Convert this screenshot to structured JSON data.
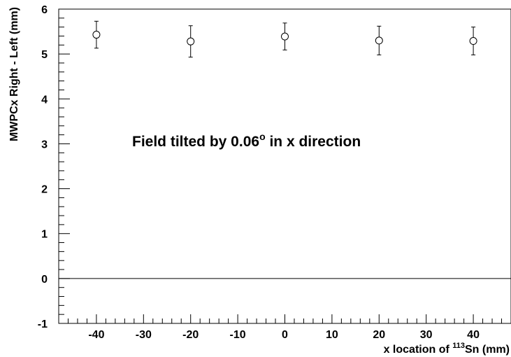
{
  "chart_data": {
    "type": "scatter",
    "xlabel_prefix": "x location of ",
    "xlabel_sup": "113",
    "xlabel_suffix": "Sn (mm)",
    "ylabel": "MWPCx Right - Left (mm)",
    "annotation_prefix": "Field tilted by 0.06",
    "annotation_sup": "o",
    "annotation_suffix": " in x direction",
    "xlim": [
      -48,
      48
    ],
    "ylim": [
      -1,
      6
    ],
    "x_ticks": [
      -40,
      -30,
      -20,
      -10,
      0,
      10,
      20,
      30,
      40
    ],
    "x_tick_labels": [
      "-40",
      "-30",
      "-20",
      "-10",
      "0",
      "10",
      "20",
      "30",
      "40"
    ],
    "y_ticks": [
      -1,
      0,
      1,
      2,
      3,
      4,
      5,
      6
    ],
    "y_tick_labels": [
      "-1",
      "0",
      "1",
      "2",
      "3",
      "4",
      "5",
      "6"
    ],
    "reference_line_y": 0,
    "grid": false,
    "marker": "open-circle",
    "points": [
      {
        "x": -40,
        "y": 5.43,
        "err_low": 0.3,
        "err_high": 0.3
      },
      {
        "x": -20,
        "y": 5.28,
        "err_low": 0.35,
        "err_high": 0.35
      },
      {
        "x": 0,
        "y": 5.39,
        "err_low": 0.3,
        "err_high": 0.3
      },
      {
        "x": 20,
        "y": 5.3,
        "err_low": 0.32,
        "err_high": 0.32
      },
      {
        "x": 40,
        "y": 5.29,
        "err_low": 0.31,
        "err_high": 0.31
      }
    ]
  }
}
